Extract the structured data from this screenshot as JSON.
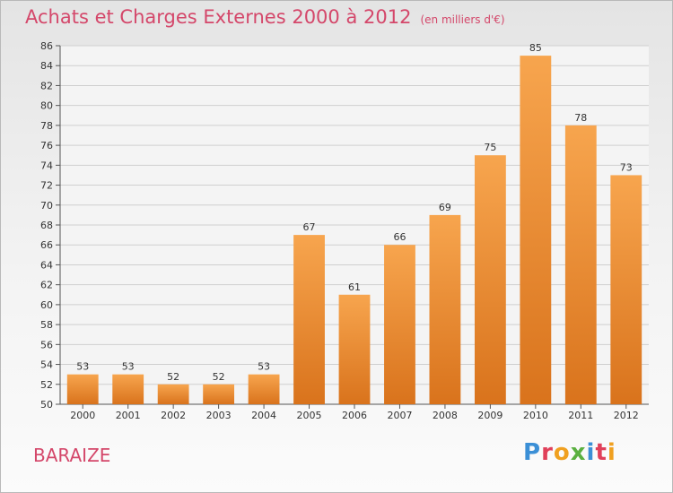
{
  "header": {
    "title": "Achats et Charges Externes 2000 à 2012",
    "unit": "(en milliers d'€)"
  },
  "commune": "BARAIZE",
  "brand": {
    "name": "Proxiti",
    "letters": [
      {
        "ch": "P",
        "color": "#3b8fd6"
      },
      {
        "ch": "r",
        "color": "#e0405a"
      },
      {
        "ch": "o",
        "color": "#f0a020"
      },
      {
        "ch": "x",
        "color": "#5ab040"
      },
      {
        "ch": "i",
        "color": "#3b8fd6"
      },
      {
        "ch": "t",
        "color": "#e0405a"
      },
      {
        "ch": "i",
        "color": "#f0a020"
      }
    ]
  },
  "colors": {
    "bar_top": "#f7a54e",
    "bar_bottom": "#d9731c",
    "title": "#d4476a",
    "grid": "#cfcfcf",
    "axis": "#555555"
  },
  "chart_data": {
    "type": "bar",
    "title": "Achats et Charges Externes 2000 à 2012",
    "subtitle": "(en milliers d'€)",
    "categories": [
      "2000",
      "2001",
      "2002",
      "2003",
      "2004",
      "2005",
      "2006",
      "2007",
      "2008",
      "2009",
      "2010",
      "2011",
      "2012"
    ],
    "values": [
      53,
      53,
      52,
      52,
      53,
      67,
      61,
      66,
      69,
      75,
      85,
      78,
      73
    ],
    "ylim": [
      50,
      86
    ],
    "yticks": [
      50,
      52,
      54,
      56,
      58,
      60,
      62,
      64,
      66,
      68,
      70,
      72,
      74,
      76,
      78,
      80,
      82,
      84,
      86
    ],
    "grid": true,
    "data_labels": true
  }
}
